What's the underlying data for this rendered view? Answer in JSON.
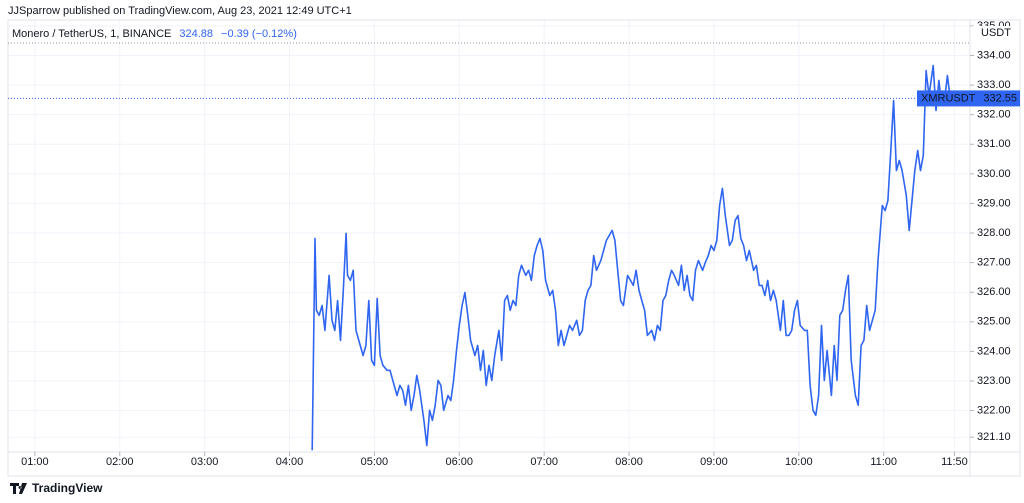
{
  "header": {
    "published": "JJSparrow published on TradingView.com, Aug 23, 2021 12:49 UTC+1"
  },
  "footer": {
    "brand": "TradingView"
  },
  "chart_data": {
    "type": "line",
    "title": "Monero / TetherUS, 1, BINANCE",
    "change": "−0.39 (−0.12%)",
    "y_label": "USDT",
    "grid": true,
    "x": [
      "04:16",
      "04:18",
      "04:19",
      "04:21",
      "04:23",
      "04:25",
      "04:28",
      "04:30",
      "04:32",
      "04:34",
      "04:36",
      "04:38",
      "04:40",
      "04:41",
      "04:43",
      "04:45",
      "04:47",
      "04:49",
      "04:52",
      "04:54",
      "04:56",
      "04:58",
      "05:00",
      "05:02",
      "05:04",
      "05:06",
      "05:09",
      "05:11",
      "05:13",
      "05:16",
      "05:18",
      "05:20",
      "05:22",
      "05:24",
      "05:26",
      "05:28",
      "05:30",
      "05:32",
      "05:35",
      "05:37",
      "05:39",
      "05:41",
      "05:43",
      "05:45",
      "05:47",
      "05:49",
      "05:52",
      "05:54",
      "05:56",
      "05:58",
      "06:00",
      "06:02",
      "06:04",
      "06:06",
      "06:08",
      "06:11",
      "06:13",
      "06:15",
      "06:17",
      "06:19",
      "06:21",
      "06:23",
      "06:25",
      "06:28",
      "06:30",
      "06:32",
      "06:34",
      "06:36",
      "06:38",
      "06:40",
      "06:42",
      "06:44",
      "06:47",
      "06:49",
      "06:51",
      "06:53",
      "06:55",
      "06:57",
      "06:59",
      "07:01",
      "07:04",
      "07:06",
      "07:08",
      "07:10",
      "07:12",
      "07:14",
      "07:16",
      "07:18",
      "07:20",
      "07:23",
      "07:25",
      "07:27",
      "07:29",
      "07:31",
      "07:33",
      "07:35",
      "07:37",
      "07:40",
      "07:42",
      "07:44",
      "07:46",
      "07:48",
      "07:50",
      "07:52",
      "07:54",
      "07:56",
      "07:59",
      "08:01",
      "08:03",
      "08:05",
      "08:07",
      "08:09",
      "08:11",
      "08:13",
      "08:16",
      "08:18",
      "08:20",
      "08:22",
      "08:24",
      "08:26",
      "08:28",
      "08:30",
      "08:32",
      "08:35",
      "08:37",
      "08:39",
      "08:41",
      "08:43",
      "08:45",
      "08:47",
      "08:49",
      "08:52",
      "08:54",
      "08:56",
      "08:58",
      "09:00",
      "09:02",
      "09:04",
      "09:06",
      "09:08",
      "09:11",
      "09:13",
      "09:15",
      "09:17",
      "09:19",
      "09:21",
      "09:23",
      "09:25",
      "09:28",
      "09:30",
      "09:32",
      "09:34",
      "09:36",
      "09:38",
      "09:40",
      "09:42",
      "09:44",
      "09:47",
      "09:49",
      "09:51",
      "09:53",
      "09:55",
      "09:57",
      "09:59",
      "10:01",
      "10:04",
      "10:06",
      "10:08",
      "10:10",
      "10:12",
      "10:14",
      "10:16",
      "10:18",
      "10:20",
      "10:23",
      "10:25",
      "10:27",
      "10:29",
      "10:31",
      "10:33",
      "10:35",
      "10:37",
      "10:40",
      "10:42",
      "10:44",
      "10:46",
      "10:48",
      "10:50",
      "10:52",
      "10:54",
      "10:56",
      "10:59",
      "11:01",
      "11:03",
      "11:05",
      "11:07",
      "11:09",
      "11:11",
      "11:13",
      "11:16",
      "11:18",
      "11:20",
      "11:22",
      "11:24",
      "11:26",
      "11:28",
      "11:30",
      "11:32",
      "11:35",
      "11:37",
      "11:39",
      "11:41",
      "11:43",
      "11:45",
      "11:47"
    ],
    "series": [
      {
        "name": "XMRUSDT",
        "color": "#2f65f0",
        "values": [
          320.66,
          327.82,
          325.39,
          325.22,
          325.55,
          324.71,
          326.57,
          325.05,
          324.71,
          325.72,
          324.37,
          326.06,
          327.99,
          326.57,
          326.4,
          326.74,
          324.71,
          324.37,
          323.86,
          324.2,
          325.72,
          323.7,
          323.53,
          325.79,
          323.86,
          323.53,
          323.36,
          323.36,
          323.02,
          322.51,
          322.85,
          322.68,
          322.18,
          322.85,
          322.01,
          322.51,
          323.19,
          322.68,
          321.67,
          320.82,
          322.01,
          321.67,
          322.18,
          323.02,
          322.85,
          322.01,
          322.51,
          322.34,
          323.02,
          324.03,
          324.88,
          325.55,
          325.99,
          325.22,
          324.37,
          323.86,
          324.2,
          323.36,
          324.03,
          322.85,
          323.53,
          323.02,
          323.86,
          324.71,
          323.7,
          325.72,
          325.89,
          325.39,
          325.72,
          325.55,
          326.57,
          326.91,
          326.57,
          326.74,
          326.4,
          327.24,
          327.58,
          327.82,
          327.41,
          326.4,
          325.89,
          326.06,
          325.39,
          324.2,
          324.71,
          324.2,
          324.54,
          324.88,
          324.71,
          325.05,
          324.54,
          324.71,
          325.72,
          326.06,
          326.23,
          327.24,
          326.74,
          327.07,
          327.41,
          327.75,
          327.92,
          328.09,
          327.75,
          326.74,
          325.72,
          325.55,
          326.57,
          326.4,
          326.23,
          326.74,
          326.06,
          325.72,
          325.39,
          324.54,
          324.71,
          324.37,
          324.88,
          324.71,
          325.72,
          325.89,
          326.4,
          326.74,
          326.57,
          326.23,
          326.91,
          326.06,
          326.57,
          325.89,
          325.72,
          326.74,
          327.07,
          326.74,
          327.01,
          327.24,
          327.58,
          327.41,
          327.75,
          328.93,
          329.51,
          328.59,
          327.58,
          327.75,
          328.43,
          328.59,
          327.82,
          327.58,
          327.07,
          327.41,
          326.74,
          326.91,
          326.23,
          326.23,
          325.89,
          326.4,
          325.72,
          326.06,
          325.72,
          324.71,
          325.72,
          324.54,
          324.54,
          324.71,
          325.39,
          325.72,
          324.88,
          324.71,
          324.71,
          322.85,
          322.01,
          321.84,
          322.51,
          324.88,
          323.02,
          324.03,
          322.51,
          324.2,
          323.02,
          325.22,
          325.39,
          326.06,
          326.57,
          323.7,
          322.51,
          322.18,
          324.2,
          324.37,
          325.55,
          324.71,
          325.05,
          325.39,
          327.07,
          328.93,
          328.76,
          329.1,
          330.79,
          332.48,
          330.11,
          330.45,
          330.11,
          329.27,
          328.09,
          329.1,
          330.11,
          330.79,
          330.11,
          330.62,
          333.49,
          332.65,
          333.66,
          332.14,
          333.16,
          332.31,
          332.48,
          333.32,
          332.55
        ]
      }
    ],
    "xlim": [
      "00:41",
      "12:01"
    ],
    "xticks": [
      "01:00",
      "02:00",
      "03:00",
      "04:00",
      "05:00",
      "06:00",
      "07:00",
      "08:00",
      "09:00",
      "10:00",
      "11:00",
      "11:50"
    ],
    "ylim": [
      320.6,
      335.2
    ],
    "yticks": [
      {
        "value": 321.1,
        "label": "321.10"
      },
      {
        "value": 322,
        "label": "322.00"
      },
      {
        "value": 323,
        "label": "323.00"
      },
      {
        "value": 324,
        "label": "324.00"
      },
      {
        "value": 325,
        "label": "325.00"
      },
      {
        "value": 326,
        "label": "326.00"
      },
      {
        "value": 327,
        "label": "327.00"
      },
      {
        "value": 328,
        "label": "328.00"
      },
      {
        "value": 329,
        "label": "329.00"
      },
      {
        "value": 330,
        "label": "330.00"
      },
      {
        "value": 331,
        "label": "331.00"
      },
      {
        "value": 332,
        "label": "332.00"
      },
      {
        "value": 333,
        "label": "333.00"
      },
      {
        "value": 334,
        "label": "334.00"
      },
      {
        "value": 335,
        "label": "335.00"
      }
    ]
  }
}
